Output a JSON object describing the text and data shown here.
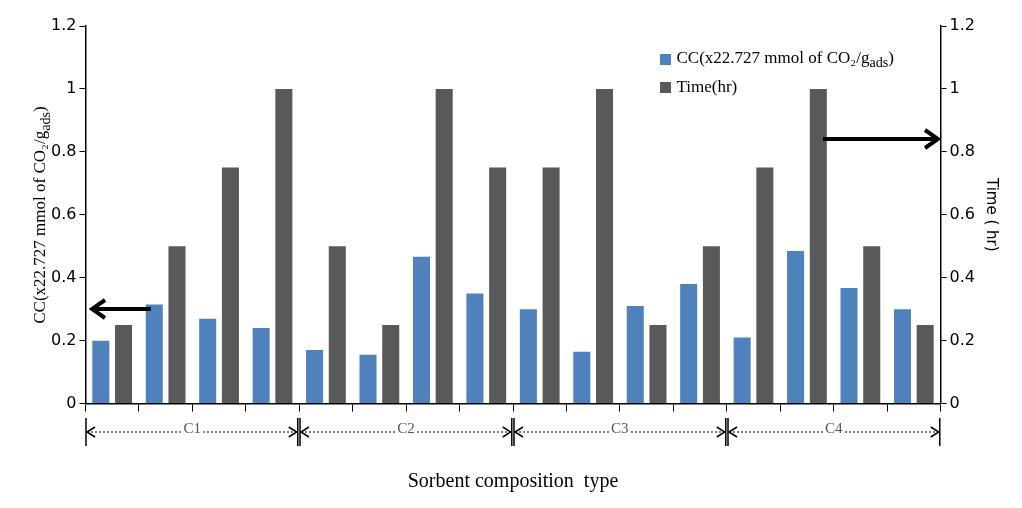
{
  "chart_data": {
    "type": "bar",
    "xlabel": "Sorbent composition  type",
    "ylabel": "CC(x22.727 mmol of CO₂/g$_{ads}$)",
    "y2label": "Time ( hr)",
    "categories": [
      null,
      null,
      null,
      null,
      null,
      null,
      null,
      null,
      null,
      null,
      null,
      null,
      null,
      null,
      null,
      null
    ],
    "series": [
      {
        "name": "CC(x22.727 mmol of CO₂/g$_{ads}$)",
        "color": "#4f81bd",
        "values": [
          0.2,
          0.315,
          0.27,
          0.24,
          0.17,
          0.155,
          0.467,
          0.35,
          0.3,
          0.165,
          0.31,
          0.38,
          0.21,
          0.485,
          0.367,
          0.3
        ]
      },
      {
        "name": "Time(hr)",
        "color": "#595959",
        "axis": "y2",
        "values": [
          0.25,
          0.5,
          0.75,
          1,
          0.5,
          0.25,
          1,
          0.75,
          0.75,
          1,
          0.25,
          0.5,
          0.75,
          1,
          0.5,
          0.25
        ]
      }
    ],
    "ylim": [
      0,
      1.2
    ],
    "yticks": [
      0,
      0.2,
      0.4,
      0.6,
      0.8,
      1,
      1.2
    ],
    "y2lim": [
      0,
      1.2
    ],
    "y2ticks": [
      0,
      0.2,
      0.4,
      0.6,
      0.8,
      1,
      1.2
    ],
    "annotations": [
      "C1",
      "C2",
      "C3",
      "C4"
    ],
    "legend": "top right",
    "grid": false
  }
}
